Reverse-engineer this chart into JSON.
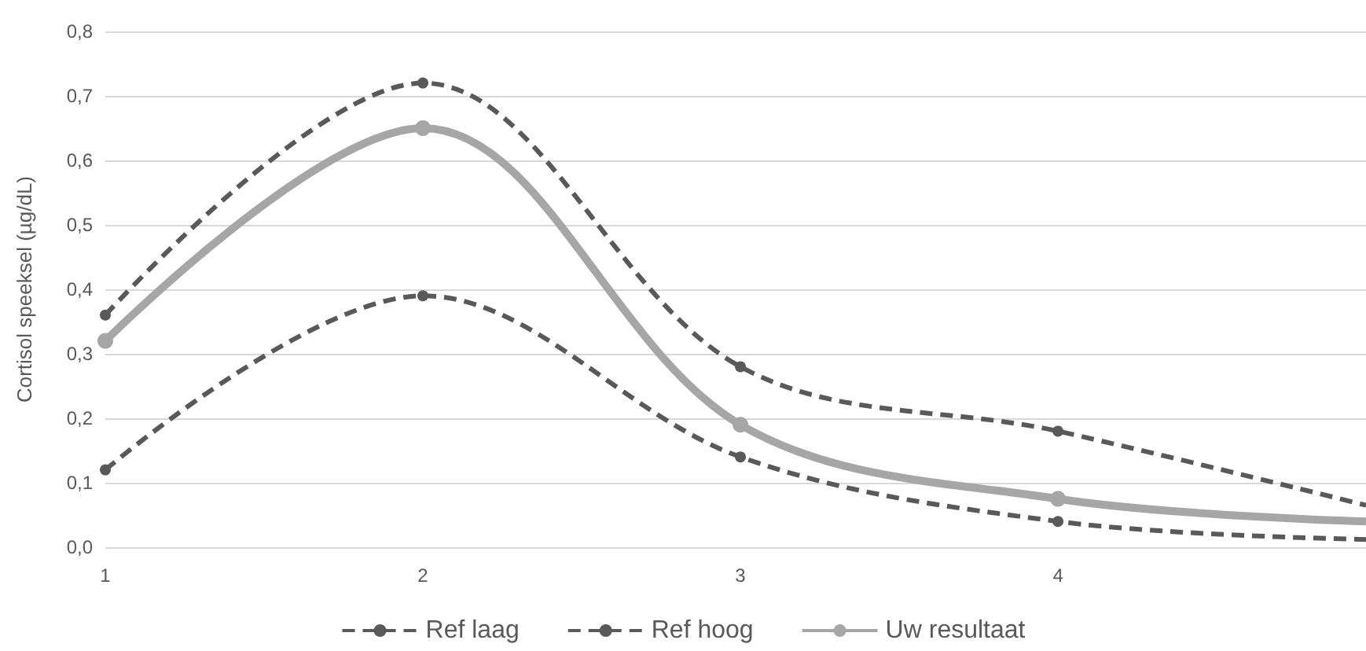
{
  "chart_data": {
    "type": "line",
    "ylabel": "Cortisol speeksel (µg/dL)",
    "x": [
      1,
      2,
      3,
      4,
      4.97
    ],
    "xlim": [
      1,
      4.97
    ],
    "xticks": [
      1,
      2,
      3,
      4
    ],
    "ylim": [
      0,
      0.8
    ],
    "yticks": [
      {
        "value": 0,
        "label": "0,0"
      },
      {
        "value": 0.1,
        "label": "0,1"
      },
      {
        "value": 0.2,
        "label": "0,2"
      },
      {
        "value": 0.3,
        "label": "0,3"
      },
      {
        "value": 0.4,
        "label": "0,4"
      },
      {
        "value": 0.5,
        "label": "0,5"
      },
      {
        "value": 0.6,
        "label": "0,6"
      },
      {
        "value": 0.7,
        "label": "0,7"
      },
      {
        "value": 0.8,
        "label": "0,8"
      }
    ],
    "series": [
      {
        "name": "Ref laag",
        "color": "#595959",
        "line_style": "dashed",
        "values": [
          0.12,
          0.39,
          0.14,
          0.04,
          0.012
        ]
      },
      {
        "name": "Ref hoog",
        "color": "#595959",
        "line_style": "dashed",
        "values": [
          0.36,
          0.72,
          0.28,
          0.18,
          0.065
        ]
      },
      {
        "name": "Uw resultaat",
        "color": "#a6a6a6",
        "line_style": "solid",
        "values": [
          0.32,
          0.65,
          0.19,
          0.075,
          0.04
        ]
      }
    ],
    "grid": "y",
    "legend": "bottom",
    "marker": "circle"
  }
}
